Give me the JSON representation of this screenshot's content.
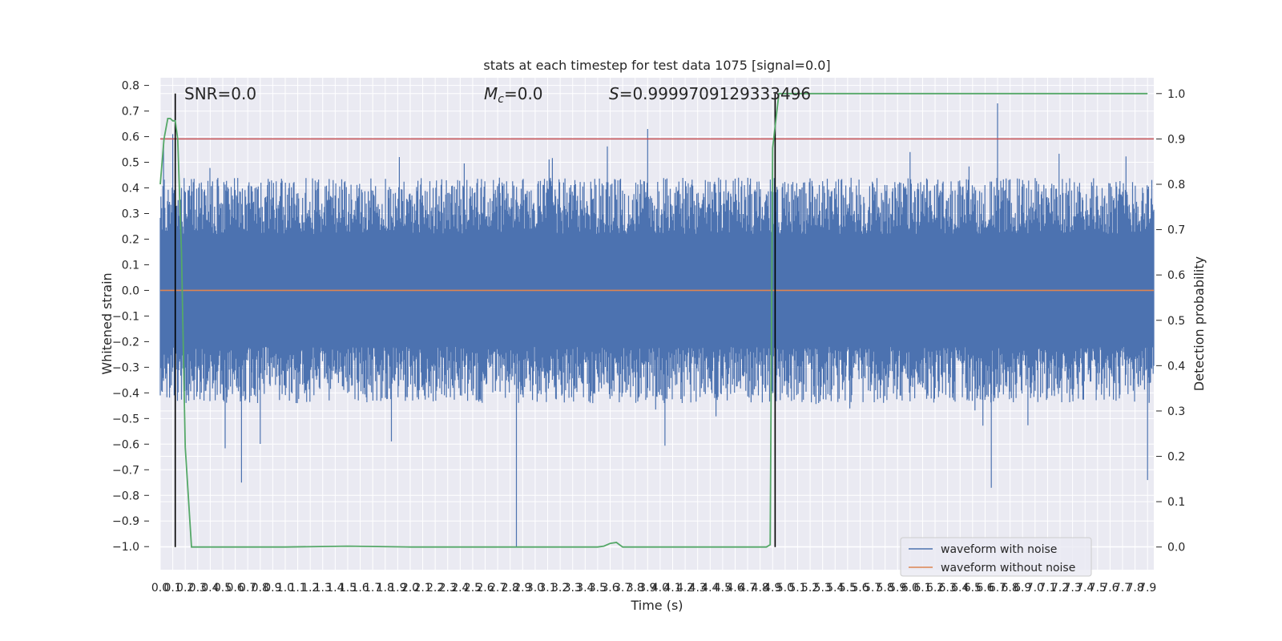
{
  "chart_data": {
    "type": "line",
    "title": "stats at each timestep for test data 1075 [signal=0.0]",
    "xlabel": "Time (s)",
    "ylabel": "Whitened strain",
    "y2label": "Detection probability",
    "xlim": [
      0.0,
      7.95
    ],
    "ylim": [
      -1.09,
      0.83
    ],
    "y2lim": [
      -0.05,
      1.035
    ],
    "x_ticks": [
      0.0,
      0.1,
      0.2,
      0.3,
      0.4,
      0.5,
      0.6,
      0.7,
      0.8,
      0.9,
      1.0,
      1.1,
      1.2,
      1.3,
      1.4,
      1.5,
      1.6,
      1.7,
      1.8,
      1.9,
      2.0,
      2.1,
      2.2,
      2.3,
      2.4,
      2.5,
      2.6,
      2.7,
      2.8,
      2.9,
      3.0,
      3.1,
      3.2,
      3.3,
      3.4,
      3.5,
      3.6,
      3.7,
      3.8,
      3.9,
      4.0,
      4.1,
      4.2,
      4.3,
      4.4,
      4.5,
      4.6,
      4.7,
      4.8,
      4.9,
      5.0,
      5.1,
      5.2,
      5.3,
      5.4,
      5.5,
      5.6,
      5.7,
      5.8,
      5.9,
      6.0,
      6.1,
      6.2,
      6.3,
      6.4,
      6.5,
      6.6,
      6.7,
      6.8,
      6.9,
      7.0,
      7.1,
      7.2,
      7.3,
      7.4,
      7.5,
      7.6,
      7.7,
      7.8,
      7.9
    ],
    "y_ticks": [
      0.8,
      0.7,
      0.6,
      0.5,
      0.4,
      0.3,
      0.2,
      0.1,
      0.0,
      -0.1,
      -0.2,
      -0.3,
      -0.4,
      -0.5,
      -0.6,
      -0.7,
      -0.8,
      -0.9,
      -1.0
    ],
    "y2_ticks": [
      1.0,
      0.9,
      0.8,
      0.7,
      0.6,
      0.5,
      0.4,
      0.3,
      0.2,
      0.1,
      0.0
    ],
    "grid": true,
    "legend_placement": "lower-right",
    "annotations": [
      {
        "text": "SNR=0.0"
      },
      {
        "text": "M",
        "sub": "c",
        "suffix": "=0.0"
      },
      {
        "text": "S",
        "suffix": "=0.9999709129333496"
      }
    ],
    "threshold": 0.9,
    "event_lines_x": [
      0.12,
      4.92
    ],
    "series": [
      {
        "name": "waveform with noise",
        "color": "#4c72b0",
        "noise_envelope": {
          "core_amplitude": 0.22,
          "peak_max": [
            0.1,
            0.61,
            3.9,
            0.63,
            6.7,
            0.73,
            6.0,
            0.54
          ],
          "trough_min": [
            0.0,
            -0.41,
            0.65,
            -0.75,
            2.85,
            -1.0,
            6.65,
            -0.77,
            7.9,
            -0.74
          ]
        }
      },
      {
        "name": "waveform without noise",
        "color": "#dd8452",
        "constant": 0.0
      },
      {
        "color": "#55a868",
        "axis": "right",
        "x": [
          0.0,
          0.03,
          0.06,
          0.08,
          0.1,
          0.12,
          0.14,
          0.17,
          0.2,
          0.25,
          0.3,
          0.5,
          1.0,
          1.5,
          2.0,
          2.5,
          3.0,
          3.5,
          3.55,
          3.6,
          3.65,
          3.7,
          3.8,
          3.9,
          4.0,
          4.5,
          4.7,
          4.85,
          4.88,
          4.9,
          4.95,
          5.0,
          5.5,
          6.0,
          6.5,
          7.0,
          7.5,
          7.9
        ],
        "y": [
          0.8,
          0.9,
          0.945,
          0.945,
          0.94,
          0.94,
          0.9,
          0.65,
          0.22,
          0.0,
          0.0,
          0.0,
          0.0,
          0.002,
          0.0,
          0.0,
          0.0,
          0.0,
          0.002,
          0.008,
          0.01,
          0.0,
          0.0,
          0.0,
          0.0,
          0.0,
          0.0,
          0.0,
          0.005,
          0.88,
          1.0,
          1.0,
          1.0,
          1.0,
          1.0,
          1.0,
          1.0,
          1.0
        ]
      },
      {
        "color": "#c44e52",
        "axis": "right",
        "constant": 0.9
      }
    ]
  }
}
